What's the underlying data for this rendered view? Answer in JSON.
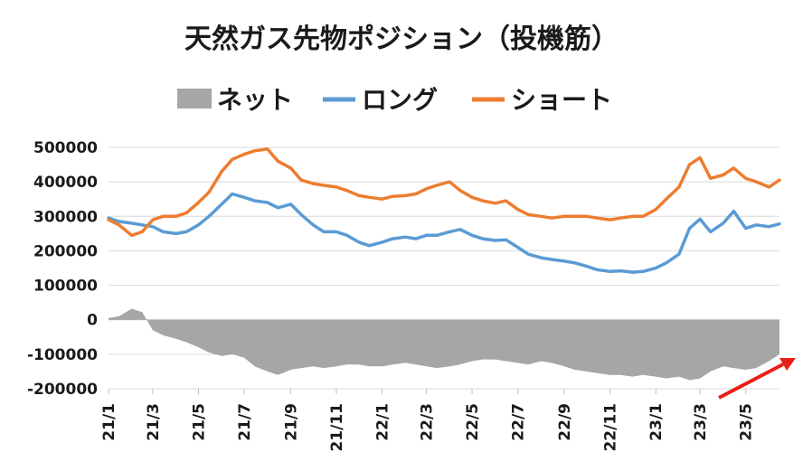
{
  "chart_data": {
    "type": "line",
    "title": "天然ガス先物ポジション（投機筋）",
    "legend": {
      "placement": "top",
      "entries": [
        "ネット",
        "ロング",
        "ショート"
      ]
    },
    "colors": {
      "net": "#a6a6a6",
      "long": "#5b9bd5",
      "short": "#ed7d31",
      "arrow": "#e8201a"
    },
    "grid": true,
    "ylim": [
      -200000,
      500000
    ],
    "yticks": [
      "500000",
      "400000",
      "300000",
      "200000",
      "100000",
      "0",
      "-100000",
      "-200000"
    ],
    "ytick_values": [
      500000,
      400000,
      300000,
      200000,
      100000,
      0,
      -100000,
      -200000
    ],
    "xticks": [
      "21/1",
      "21/3",
      "21/5",
      "21/7",
      "21/9",
      "21/11",
      "22/1",
      "22/3",
      "22/5",
      "22/7",
      "22/9",
      "22/11",
      "23/1",
      "23/3",
      "23/5"
    ],
    "xtick_dates": [
      "2021-01-01",
      "2021-03-01",
      "2021-05-01",
      "2021-07-01",
      "2021-09-01",
      "2021-11-01",
      "2022-01-01",
      "2022-03-01",
      "2022-05-01",
      "2022-07-01",
      "2022-09-01",
      "2022-11-01",
      "2023-01-01",
      "2023-03-01",
      "2023-05-01"
    ],
    "x": [
      "2021-01-01",
      "2021-01-15",
      "2021-02-01",
      "2021-02-15",
      "2021-03-01",
      "2021-03-15",
      "2021-04-01",
      "2021-04-15",
      "2021-05-01",
      "2021-05-15",
      "2021-06-01",
      "2021-06-15",
      "2021-07-01",
      "2021-07-15",
      "2021-08-01",
      "2021-08-15",
      "2021-09-01",
      "2021-09-15",
      "2021-10-01",
      "2021-10-15",
      "2021-11-01",
      "2021-11-15",
      "2021-12-01",
      "2021-12-15",
      "2022-01-01",
      "2022-01-15",
      "2022-02-01",
      "2022-02-15",
      "2022-03-01",
      "2022-03-15",
      "2022-04-01",
      "2022-04-15",
      "2022-05-01",
      "2022-05-15",
      "2022-06-01",
      "2022-06-15",
      "2022-07-01",
      "2022-07-15",
      "2022-08-01",
      "2022-08-15",
      "2022-09-01",
      "2022-09-15",
      "2022-10-01",
      "2022-10-15",
      "2022-11-01",
      "2022-11-15",
      "2022-12-01",
      "2022-12-15",
      "2023-01-01",
      "2023-01-15",
      "2023-02-01",
      "2023-02-15",
      "2023-03-01",
      "2023-03-15",
      "2023-04-01",
      "2023-04-15",
      "2023-05-01",
      "2023-05-15",
      "2023-06-01",
      "2023-06-15"
    ],
    "series": [
      {
        "name": "ネット",
        "kind": "area",
        "values": [
          5000,
          10000,
          32000,
          22000,
          -30000,
          -45000,
          -55000,
          -65000,
          -80000,
          -95000,
          -105000,
          -100000,
          -110000,
          -135000,
          -150000,
          -160000,
          -145000,
          -140000,
          -135000,
          -140000,
          -135000,
          -130000,
          -130000,
          -135000,
          -135000,
          -130000,
          -125000,
          -130000,
          -135000,
          -140000,
          -135000,
          -130000,
          -120000,
          -115000,
          -115000,
          -120000,
          -125000,
          -130000,
          -120000,
          -125000,
          -135000,
          -145000,
          -150000,
          -155000,
          -160000,
          -160000,
          -165000,
          -160000,
          -165000,
          -170000,
          -165000,
          -175000,
          -170000,
          -150000,
          -135000,
          -140000,
          -145000,
          -140000,
          -120000,
          -100000
        ]
      },
      {
        "name": "ロング",
        "kind": "line",
        "values": [
          295000,
          285000,
          280000,
          275000,
          270000,
          255000,
          250000,
          255000,
          275000,
          300000,
          335000,
          365000,
          355000,
          345000,
          340000,
          325000,
          335000,
          305000,
          275000,
          255000,
          255000,
          245000,
          225000,
          215000,
          225000,
          235000,
          240000,
          235000,
          245000,
          245000,
          255000,
          262000,
          245000,
          235000,
          230000,
          232000,
          210000,
          190000,
          180000,
          175000,
          170000,
          165000,
          155000,
          145000,
          140000,
          142000,
          138000,
          140000,
          150000,
          165000,
          190000,
          265000,
          292000,
          255000,
          280000,
          315000,
          265000,
          275000,
          270000,
          278000
        ]
      },
      {
        "name": "ショート",
        "kind": "line",
        "values": [
          290000,
          275000,
          245000,
          255000,
          290000,
          300000,
          300000,
          310000,
          340000,
          370000,
          430000,
          465000,
          480000,
          490000,
          495000,
          460000,
          440000,
          405000,
          395000,
          390000,
          385000,
          375000,
          360000,
          355000,
          350000,
          358000,
          360000,
          365000,
          380000,
          390000,
          400000,
          375000,
          355000,
          345000,
          338000,
          345000,
          320000,
          305000,
          300000,
          295000,
          300000,
          300000,
          300000,
          295000,
          290000,
          295000,
          300000,
          300000,
          320000,
          350000,
          385000,
          450000,
          470000,
          410000,
          420000,
          440000,
          410000,
          400000,
          385000,
          405000
        ]
      }
    ]
  }
}
